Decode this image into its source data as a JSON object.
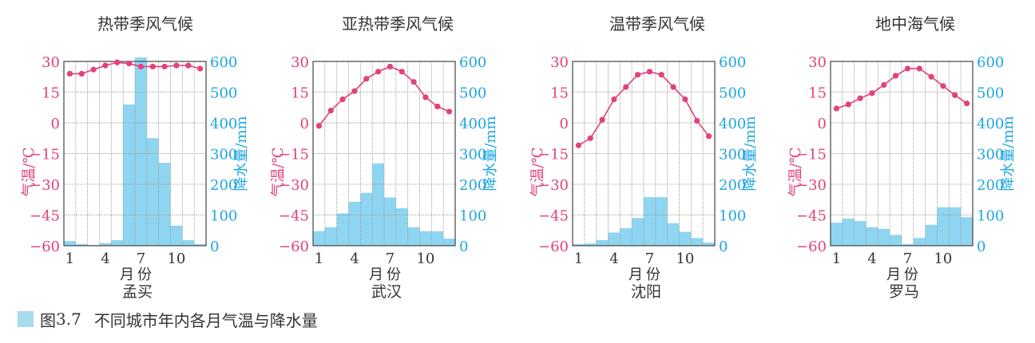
{
  "caption": {
    "figure_label": "图",
    "figure_number": "3.7",
    "text": "不同城市年内各月气温与降水量"
  },
  "axis": {
    "temp_label": "气温/℃",
    "precip_label": "降水量/mm",
    "x_label": "月份",
    "temp_ticks": [
      30,
      15,
      0,
      -15,
      -30,
      -45,
      -60
    ],
    "precip_ticks": [
      600,
      500,
      400,
      300,
      200,
      100,
      0
    ],
    "month_ticks": [
      1,
      4,
      7,
      10
    ]
  },
  "colors": {
    "temperature": "#e2407e",
    "precipitation_axis": "#1ea6e2",
    "precipitation_bar": "#8ed5f2",
    "grid": "#9a9a8c",
    "frame": "#444444"
  },
  "chart_data": [
    {
      "type": "bar+line",
      "title": "热带季风气候",
      "city": "孟买",
      "xlabel": "月份",
      "ylabel_left": "气温/℃",
      "ylabel_right": "降水量/mm",
      "ylim_left": [
        -60,
        30
      ],
      "ylim_right": [
        0,
        600
      ],
      "categories": [
        1,
        2,
        3,
        4,
        5,
        6,
        7,
        8,
        9,
        10,
        11,
        12
      ],
      "series": [
        {
          "name": "气温",
          "type": "line",
          "values": [
            24,
            24,
            26,
            28,
            29.5,
            29,
            27.5,
            27.5,
            27.5,
            28,
            28,
            26.5
          ]
        },
        {
          "name": "降水量",
          "type": "bar",
          "values": [
            15,
            5,
            2,
            8,
            18,
            460,
            620,
            350,
            270,
            65,
            18,
            5
          ]
        }
      ]
    },
    {
      "type": "bar+line",
      "title": "亚热带季风气候",
      "city": "武汉",
      "xlabel": "月份",
      "ylabel_left": "气温/℃",
      "ylabel_right": "降水量/mm",
      "ylim_left": [
        -60,
        30
      ],
      "ylim_right": [
        0,
        600
      ],
      "categories": [
        1,
        2,
        3,
        4,
        5,
        6,
        7,
        8,
        9,
        10,
        11,
        12
      ],
      "series": [
        {
          "name": "气温",
          "type": "line",
          "values": [
            -1.5,
            6,
            11.5,
            15.5,
            21.5,
            25,
            27.5,
            25,
            20,
            12.5,
            8,
            5.5
          ]
        },
        {
          "name": "降水量",
          "type": "bar",
          "values": [
            47,
            60,
            105,
            143,
            172,
            268,
            157,
            122,
            60,
            47,
            47,
            23
          ]
        }
      ]
    },
    {
      "type": "bar+line",
      "title": "温带季风气候",
      "city": "沈阳",
      "xlabel": "月份",
      "ylabel_left": "气温/℃",
      "ylabel_right": "降水量/mm",
      "ylim_left": [
        -60,
        30
      ],
      "ylim_right": [
        0,
        600
      ],
      "categories": [
        1,
        2,
        3,
        4,
        5,
        6,
        7,
        8,
        9,
        10,
        11,
        12
      ],
      "series": [
        {
          "name": "气温",
          "type": "line",
          "values": [
            -11,
            -7.5,
            1.5,
            11.5,
            17.5,
            23.5,
            25,
            23.5,
            17.5,
            11.5,
            1,
            -6.5
          ]
        },
        {
          "name": "降水量",
          "type": "bar",
          "values": [
            5,
            7,
            18,
            43,
            57,
            90,
            158,
            158,
            73,
            45,
            25,
            10
          ]
        }
      ]
    },
    {
      "type": "bar+line",
      "title": "地中海气候",
      "city": "罗马",
      "xlabel": "月份",
      "ylabel_left": "气温/℃",
      "ylabel_right": "降水量/mm",
      "ylim_left": [
        -60,
        30
      ],
      "ylim_right": [
        0,
        600
      ],
      "categories": [
        1,
        2,
        3,
        4,
        5,
        6,
        7,
        8,
        9,
        10,
        11,
        12
      ],
      "series": [
        {
          "name": "气温",
          "type": "line",
          "values": [
            7,
            9,
            12,
            14.5,
            18.5,
            23,
            26.5,
            26.5,
            22.5,
            18,
            13.5,
            9.5
          ]
        },
        {
          "name": "降水量",
          "type": "bar",
          "values": [
            75,
            88,
            80,
            60,
            55,
            35,
            5,
            25,
            68,
            125,
            125,
            93
          ]
        }
      ]
    }
  ]
}
